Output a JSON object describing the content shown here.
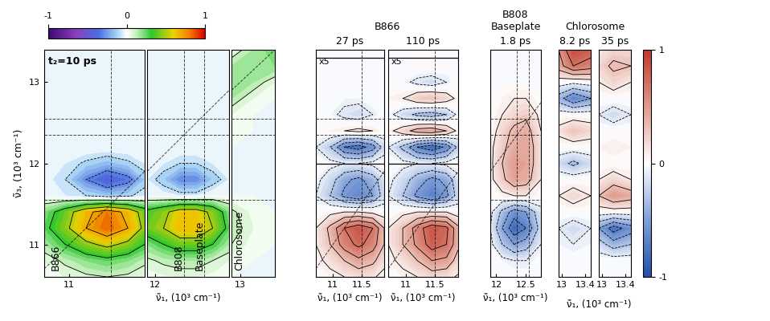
{
  "chart_data": [
    {
      "type": "heatmap",
      "subtitle": "t₂=10 ps",
      "y_label": "ν̃₃, (10³ cm⁻¹)",
      "annotations": [
        "B866"
      ],
      "colorbar": {
        "range": [
          -1,
          1
        ],
        "ticks": [
          -1,
          0,
          1
        ]
      },
      "x": [
        10.7,
        10.95,
        11.2,
        11.45,
        11.7,
        11.9
      ],
      "y": [
        10.6,
        10.8,
        11.0,
        11.2,
        11.4,
        11.6,
        11.8,
        12.0,
        12.2,
        12.4,
        12.6,
        12.8,
        13.0,
        13.2,
        13.4
      ],
      "cells": [
        [
          0.02,
          0.05,
          0.08,
          0.1,
          0.08,
          0.05
        ],
        [
          0.05,
          0.12,
          0.2,
          0.25,
          0.2,
          0.12
        ],
        [
          0.15,
          0.3,
          0.45,
          0.55,
          0.45,
          0.3
        ],
        [
          0.25,
          0.45,
          0.7,
          0.85,
          0.7,
          0.45
        ],
        [
          0.2,
          0.4,
          0.65,
          0.8,
          0.65,
          0.4
        ],
        [
          0.0,
          -0.05,
          -0.1,
          -0.15,
          -0.12,
          -0.05
        ],
        [
          -0.02,
          -0.1,
          -0.3,
          -0.45,
          -0.35,
          -0.15
        ],
        [
          0,
          -0.05,
          -0.12,
          -0.18,
          -0.12,
          -0.05
        ],
        [
          0,
          0,
          0,
          0,
          0,
          0
        ],
        [
          0,
          0,
          0,
          0,
          0,
          0
        ],
        [
          0,
          0,
          0,
          0,
          0,
          0
        ],
        [
          0,
          0,
          0,
          0,
          0,
          0
        ],
        [
          0,
          0,
          0,
          0,
          0,
          0
        ],
        [
          0,
          0,
          0,
          0,
          0,
          0
        ],
        [
          0,
          0,
          0,
          0,
          0,
          0
        ]
      ],
      "xlim": [
        10.7,
        11.9
      ],
      "ylim": [
        10.6,
        13.4
      ],
      "xticks": [
        11
      ],
      "yticks": [
        11,
        12,
        13
      ],
      "reference_lines": {
        "x": [
          11.5
        ],
        "y": [
          11.55,
          12.35,
          12.55
        ],
        "slope": 1
      }
    },
    {
      "type": "heatmap",
      "x_label": "ν̃₁, (10³ cm⁻¹)",
      "annotations": [
        "B808",
        "Baseplate"
      ],
      "tick_labels": "x",
      "x": [
        11.9,
        12.1,
        12.3,
        12.5,
        12.7,
        12.9
      ],
      "y": [
        10.6,
        10.8,
        11.0,
        11.2,
        11.4,
        11.6,
        11.8,
        12.0,
        12.2,
        12.4,
        12.6,
        12.8,
        13.0,
        13.2,
        13.4
      ],
      "cells": [
        [
          0.02,
          0.04,
          0.05,
          0.05,
          0.03,
          0.02
        ],
        [
          0.08,
          0.12,
          0.15,
          0.15,
          0.1,
          0.05
        ],
        [
          0.2,
          0.3,
          0.4,
          0.4,
          0.3,
          0.15
        ],
        [
          0.4,
          0.5,
          0.65,
          0.65,
          0.5,
          0.25
        ],
        [
          0.35,
          0.45,
          0.6,
          0.6,
          0.45,
          0.2
        ],
        [
          0,
          -0.02,
          -0.05,
          -0.05,
          0,
          0
        ],
        [
          -0.05,
          -0.15,
          -0.3,
          -0.3,
          -0.15,
          -0.05
        ],
        [
          0,
          -0.05,
          -0.1,
          -0.1,
          -0.05,
          0
        ],
        [
          0,
          0,
          0,
          0,
          0,
          0
        ],
        [
          0,
          0,
          0,
          0,
          0,
          0
        ],
        [
          0,
          0,
          0,
          0,
          0,
          0
        ],
        [
          0,
          0,
          0,
          0,
          0,
          0
        ],
        [
          0,
          0,
          0,
          0,
          0,
          0
        ],
        [
          0,
          0,
          0,
          0,
          0,
          0
        ],
        [
          0,
          0,
          0,
          0,
          0,
          0
        ]
      ],
      "xlim": [
        11.9,
        12.9
      ],
      "ylim": [
        10.6,
        13.4
      ],
      "xticks": [
        12
      ],
      "reference_lines": {
        "x": [
          12.35,
          12.6
        ],
        "y": [
          11.55,
          12.35,
          12.55
        ],
        "slope": 1
      }
    },
    {
      "type": "heatmap",
      "annotations": [
        "Chlorosome"
      ],
      "tick_labels": "x",
      "x": [
        12.9,
        13.15,
        13.4
      ],
      "y": [
        10.6,
        10.8,
        11.0,
        11.2,
        11.4,
        11.6,
        11.8,
        12.0,
        12.2,
        12.4,
        12.6,
        12.8,
        13.0,
        13.2,
        13.4
      ],
      "cells": [
        [
          0,
          0,
          0
        ],
        [
          0.02,
          0,
          0
        ],
        [
          0.1,
          0.02,
          0
        ],
        [
          0.15,
          0.05,
          0
        ],
        [
          0.12,
          0.03,
          0
        ],
        [
          0,
          0,
          0
        ],
        [
          0,
          0,
          0
        ],
        [
          0,
          0,
          0
        ],
        [
          0,
          0,
          0
        ],
        [
          0.02,
          0,
          0
        ],
        [
          0.05,
          0,
          0
        ],
        [
          0.15,
          0.05,
          0
        ],
        [
          0.2,
          0.15,
          0.05
        ],
        [
          0.15,
          0.2,
          0.2
        ],
        [
          0.05,
          0.15,
          0.25
        ]
      ],
      "xlim": [
        12.9,
        13.4
      ],
      "ylim": [
        10.6,
        13.4
      ],
      "xticks": [
        13
      ],
      "reference_lines": {
        "y": [
          11.55,
          12.35,
          12.55
        ],
        "slope": 1
      }
    },
    {
      "type": "heatmap",
      "title": "B866",
      "subtitle": "27 ps",
      "x_label": "ν̃₁, (10³ cm⁻¹)",
      "tick_labels": "x",
      "colorbar": {
        "range": [
          -1,
          1
        ],
        "ticks": [
          -1,
          0,
          1
        ]
      },
      "scaled_region": {
        "ylim": [
          12.0,
          13.3
        ],
        "label": "x5"
      },
      "x": [
        10.7,
        10.95,
        11.2,
        11.45,
        11.7,
        11.9
      ],
      "y": [
        10.6,
        10.8,
        11.0,
        11.2,
        11.4,
        11.6,
        11.8,
        12.0,
        12.2,
        12.4,
        12.6,
        12.8,
        13.0,
        13.2,
        13.4
      ],
      "cells": [
        [
          0.02,
          0.05,
          0.1,
          0.15,
          0.12,
          0.05
        ],
        [
          0.05,
          0.15,
          0.3,
          0.45,
          0.35,
          0.15
        ],
        [
          0.1,
          0.3,
          0.6,
          0.75,
          0.6,
          0.3
        ],
        [
          0.1,
          0.35,
          0.7,
          0.85,
          0.7,
          0.3
        ],
        [
          0,
          0.05,
          0.1,
          0.1,
          0.05,
          0
        ],
        [
          -0.1,
          -0.3,
          -0.55,
          -0.65,
          -0.5,
          -0.2
        ],
        [
          -0.05,
          -0.2,
          -0.45,
          -0.55,
          -0.4,
          -0.15
        ],
        [
          0,
          -0.05,
          -0.1,
          -0.1,
          -0.05,
          0
        ],
        [
          -0.1,
          -0.3,
          -0.7,
          -0.8,
          -0.6,
          -0.2
        ],
        [
          0,
          0.05,
          0.1,
          0.15,
          0.1,
          0
        ],
        [
          0,
          -0.05,
          -0.15,
          -0.2,
          -0.1,
          0
        ],
        [
          0,
          0,
          -0.05,
          -0.05,
          0,
          0
        ],
        [
          0,
          0,
          0,
          0,
          0,
          0
        ],
        [
          0,
          0,
          0,
          0,
          0,
          0
        ],
        [
          0,
          0,
          0,
          0,
          0,
          0
        ]
      ],
      "xlim": [
        10.7,
        11.9
      ],
      "ylim": [
        10.6,
        13.4
      ],
      "xticks": [
        11,
        11.5
      ],
      "reference_lines": {
        "x": [
          11.5
        ],
        "y": [
          11.55,
          12.35,
          12.55
        ],
        "slope": 1
      }
    },
    {
      "type": "heatmap",
      "subtitle": "110 ps",
      "x_label": "ν̃₁, (10³ cm⁻¹)",
      "tick_labels": "x",
      "scaled_region": {
        "ylim": [
          12.0,
          13.3
        ],
        "label": "x5"
      },
      "x": [
        10.7,
        10.95,
        11.2,
        11.45,
        11.7,
        11.9
      ],
      "y": [
        10.6,
        10.8,
        11.0,
        11.2,
        11.4,
        11.6,
        11.8,
        12.0,
        12.2,
        12.4,
        12.6,
        12.8,
        13.0,
        13.2,
        13.4
      ],
      "cells": [
        [
          0.02,
          0.05,
          0.1,
          0.18,
          0.15,
          0.08
        ],
        [
          0.05,
          0.15,
          0.3,
          0.5,
          0.45,
          0.2
        ],
        [
          0.1,
          0.3,
          0.55,
          0.8,
          0.7,
          0.35
        ],
        [
          0.1,
          0.3,
          0.6,
          0.85,
          0.75,
          0.35
        ],
        [
          0,
          0.05,
          0.1,
          0.1,
          0.1,
          0
        ],
        [
          -0.1,
          -0.3,
          -0.55,
          -0.7,
          -0.55,
          -0.2
        ],
        [
          -0.05,
          -0.2,
          -0.4,
          -0.55,
          -0.45,
          -0.15
        ],
        [
          0,
          -0.05,
          -0.1,
          -0.1,
          -0.05,
          0
        ],
        [
          -0.1,
          -0.35,
          -0.7,
          -0.85,
          -0.65,
          -0.25
        ],
        [
          0.05,
          0.2,
          0.4,
          0.45,
          0.3,
          0.05
        ],
        [
          -0.05,
          -0.2,
          -0.35,
          -0.4,
          -0.3,
          -0.05
        ],
        [
          0.05,
          0.1,
          0.25,
          0.3,
          0.2,
          0.05
        ],
        [
          0,
          -0.05,
          -0.15,
          -0.2,
          -0.1,
          0
        ],
        [
          0,
          0,
          0.05,
          0.05,
          0,
          0
        ],
        [
          0,
          0,
          0,
          0,
          0,
          0
        ]
      ],
      "xlim": [
        10.7,
        11.9
      ],
      "ylim": [
        10.6,
        13.4
      ],
      "xticks": [
        11,
        11.5
      ],
      "reference_lines": {
        "x": [
          11.5
        ],
        "y": [
          11.55,
          12.35,
          12.55
        ],
        "slope": 1
      }
    },
    {
      "type": "heatmap",
      "title": "B808\nBaseplate",
      "subtitle": "1.8 ps",
      "x_label": "ν̃₁, (10³ cm⁻¹)",
      "tick_labels": "x",
      "x": [
        11.9,
        12.1,
        12.3,
        12.5,
        12.75
      ],
      "y": [
        10.6,
        10.8,
        11.0,
        11.2,
        11.4,
        11.6,
        11.8,
        12.0,
        12.2,
        12.4,
        12.6,
        12.8,
        13.0,
        13.2,
        13.4
      ],
      "cells": [
        [
          0,
          0,
          0,
          0,
          0
        ],
        [
          0,
          -0.05,
          -0.1,
          -0.1,
          0
        ],
        [
          -0.05,
          -0.3,
          -0.5,
          -0.4,
          -0.1
        ],
        [
          -0.1,
          -0.5,
          -0.85,
          -0.7,
          -0.2
        ],
        [
          -0.05,
          -0.35,
          -0.6,
          -0.5,
          -0.15
        ],
        [
          0,
          0.05,
          0.1,
          0.1,
          0
        ],
        [
          0.05,
          0.25,
          0.45,
          0.4,
          0.1
        ],
        [
          0.05,
          0.3,
          0.5,
          0.45,
          0.15
        ],
        [
          0.05,
          0.25,
          0.4,
          0.45,
          0.15
        ],
        [
          0,
          0.2,
          0.35,
          0.4,
          0.1
        ],
        [
          0,
          0.1,
          0.2,
          0.25,
          0.05
        ],
        [
          0,
          0.05,
          0.1,
          0.1,
          0
        ],
        [
          0,
          0,
          0,
          0,
          0
        ],
        [
          0,
          0,
          0,
          0,
          0
        ],
        [
          0,
          0,
          0,
          0,
          0
        ]
      ],
      "xlim": [
        11.9,
        12.75
      ],
      "ylim": [
        10.6,
        13.4
      ],
      "xticks": [
        12,
        12.5
      ],
      "reference_lines": {
        "x": [
          12.35,
          12.55
        ],
        "y": [
          11.55,
          12.35,
          12.55
        ],
        "slope": 1
      }
    },
    {
      "type": "heatmap",
      "title": "Chlorosome",
      "subtitle": "8.2 ps",
      "x_label": "ν̃₁, (10³ cm⁻¹)",
      "tick_labels": "x",
      "x": [
        12.95,
        13.2,
        13.5
      ],
      "y": [
        10.6,
        10.8,
        11.0,
        11.2,
        11.4,
        11.6,
        11.8,
        12.0,
        12.2,
        12.4,
        12.6,
        12.8,
        13.0,
        13.2,
        13.4
      ],
      "cells": [
        [
          0,
          0,
          0
        ],
        [
          0,
          0,
          0
        ],
        [
          -0.05,
          -0.1,
          -0.05
        ],
        [
          -0.1,
          -0.2,
          -0.1
        ],
        [
          0,
          0,
          0
        ],
        [
          0.1,
          0.2,
          0.1
        ],
        [
          0,
          0,
          0
        ],
        [
          -0.2,
          -0.35,
          -0.2
        ],
        [
          0,
          0,
          0
        ],
        [
          0.15,
          0.3,
          0.2
        ],
        [
          0,
          0,
          0
        ],
        [
          -0.4,
          -0.7,
          -0.5
        ],
        [
          0,
          -0.05,
          0
        ],
        [
          0.4,
          0.7,
          0.6
        ],
        [
          0.5,
          0.9,
          0.8
        ]
      ],
      "xlim": [
        12.95,
        13.5
      ],
      "ylim": [
        10.6,
        13.4
      ],
      "xticks": [
        13,
        13.4
      ]
    },
    {
      "type": "heatmap",
      "subtitle": "35 ps",
      "tick_labels": "x",
      "x": [
        12.95,
        13.2,
        13.5
      ],
      "y": [
        10.6,
        10.8,
        11.0,
        11.2,
        11.4,
        11.6,
        11.8,
        12.0,
        12.2,
        12.4,
        12.6,
        12.8,
        13.0,
        13.2,
        13.4
      ],
      "cells": [
        [
          0,
          0,
          0
        ],
        [
          0,
          0,
          0
        ],
        [
          -0.2,
          -0.4,
          -0.3
        ],
        [
          -0.5,
          -0.8,
          -0.6
        ],
        [
          0,
          0,
          0
        ],
        [
          0.3,
          0.5,
          0.4
        ],
        [
          0.1,
          0.2,
          0.1
        ],
        [
          0,
          0,
          0
        ],
        [
          0.05,
          0.1,
          0.05
        ],
        [
          0,
          0,
          0
        ],
        [
          -0.1,
          -0.2,
          -0.1
        ],
        [
          0,
          0,
          0
        ],
        [
          0.1,
          0.2,
          0.1
        ],
        [
          0.2,
          0.35,
          0.3
        ],
        [
          0.1,
          0.2,
          0.2
        ]
      ],
      "xlim": [
        12.95,
        13.5
      ],
      "ylim": [
        10.6,
        13.4
      ],
      "xticks": [
        13,
        13.4
      ]
    }
  ]
}
